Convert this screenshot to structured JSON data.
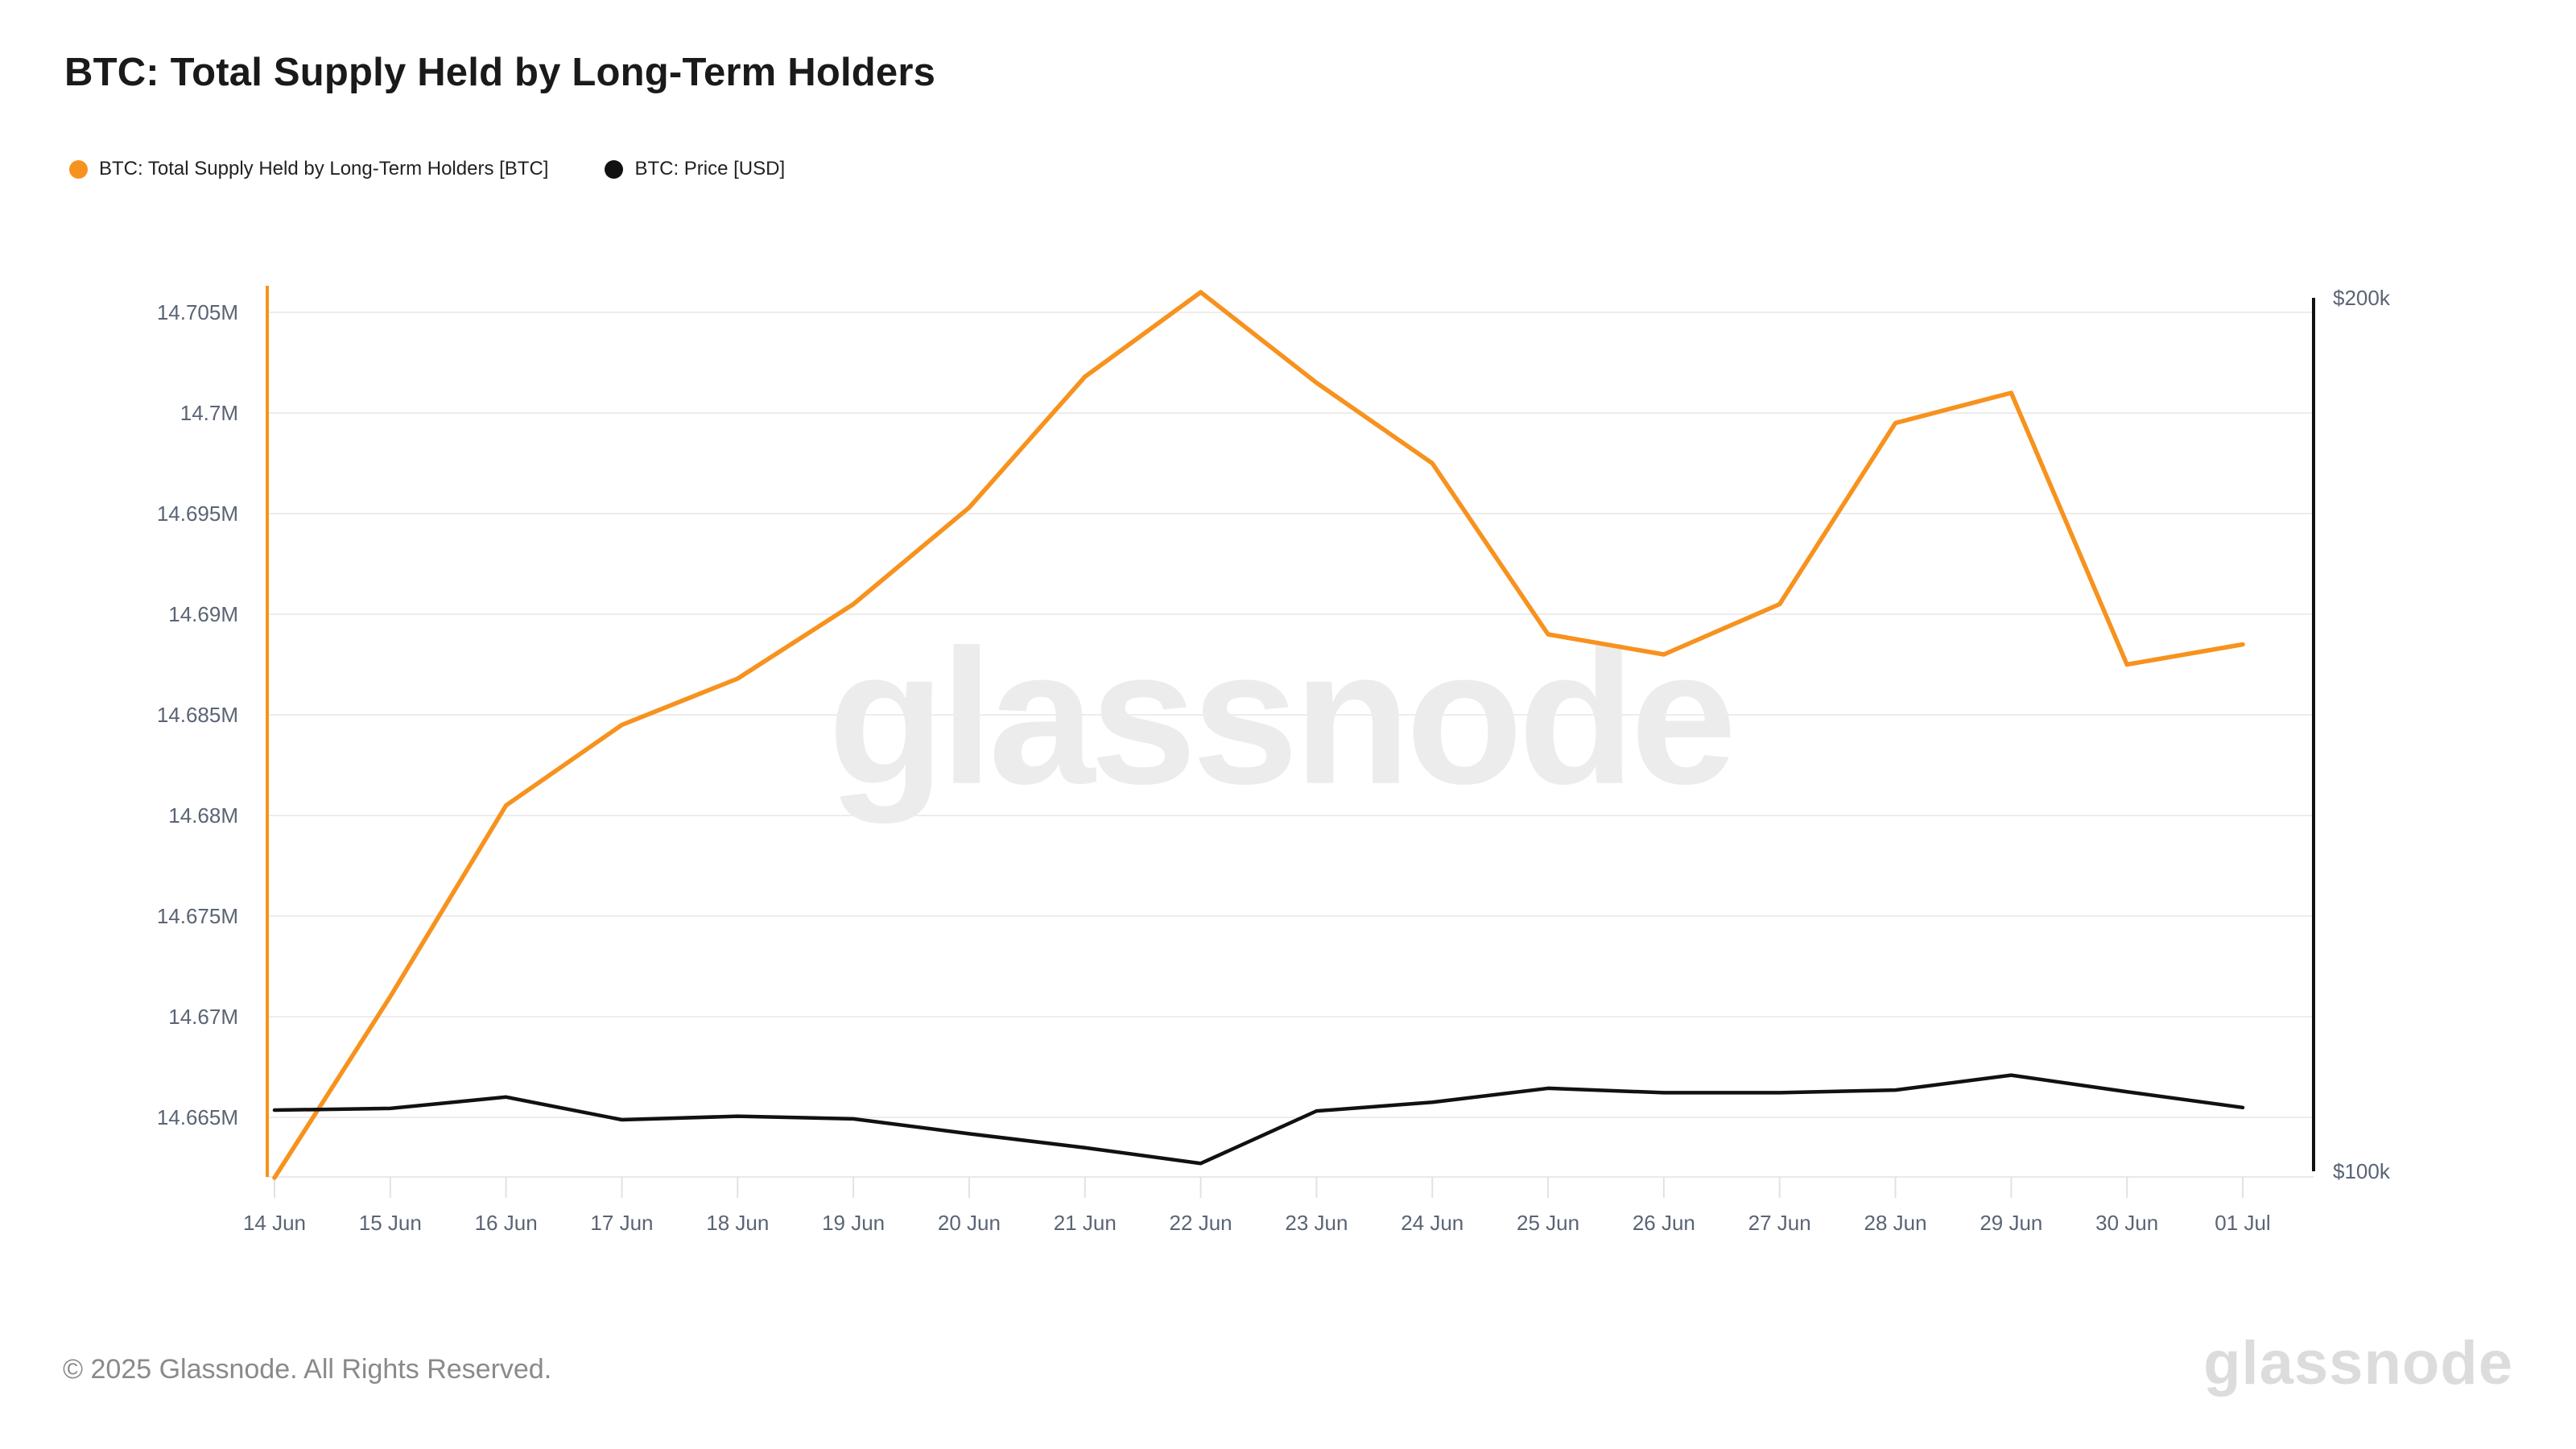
{
  "header": {
    "title": "BTC: Total Supply Held by Long-Term Holders"
  },
  "legend": {
    "items": [
      {
        "label": "BTC: Total Supply Held by Long-Term Holders [BTC]",
        "color": "#f7921e"
      },
      {
        "label": "BTC: Price [USD]",
        "color": "#111111"
      }
    ]
  },
  "watermark": {
    "text": "glassnode"
  },
  "footer": {
    "copyright": "© 2025 Glassnode. All Rights Reserved.",
    "brand": "glassnode"
  },
  "chart_data": {
    "type": "line",
    "title": "BTC: Total Supply Held by Long-Term Holders",
    "grid": "horizontal",
    "legend_position": "top-left",
    "x": [
      "14 Jun",
      "15 Jun",
      "16 Jun",
      "17 Jun",
      "18 Jun",
      "19 Jun",
      "20 Jun",
      "21 Jun",
      "22 Jun",
      "23 Jun",
      "24 Jun",
      "25 Jun",
      "26 Jun",
      "27 Jun",
      "28 Jun",
      "29 Jun",
      "30 Jun",
      "01 Jul"
    ],
    "series": [
      {
        "name": "BTC: Total Supply Held by Long-Term Holders [BTC]",
        "axis": "left",
        "unit": "M BTC",
        "color": "#f7921e",
        "values": [
          14.662,
          14.671,
          14.6805,
          14.6845,
          14.6868,
          14.6905,
          14.6953,
          14.7018,
          14.706,
          14.7015,
          14.6975,
          14.689,
          14.688,
          14.6905,
          14.6995,
          14.701,
          14.6875,
          14.6885
        ]
      },
      {
        "name": "BTC: Price [USD]",
        "axis": "right",
        "unit": "thousand USD",
        "color": "#111111",
        "values": [
          107.0,
          107.2,
          108.5,
          105.9,
          106.3,
          106.0,
          104.3,
          102.7,
          100.9,
          106.9,
          107.9,
          109.5,
          109.0,
          109.0,
          109.3,
          111.0,
          109.1,
          107.3
        ]
      }
    ],
    "left_axis": {
      "ticks": [
        {
          "label": "14.705M",
          "value": 14.705
        },
        {
          "label": "14.7M",
          "value": 14.7
        },
        {
          "label": "14.695M",
          "value": 14.695
        },
        {
          "label": "14.69M",
          "value": 14.69
        },
        {
          "label": "14.685M",
          "value": 14.685
        },
        {
          "label": "14.68M",
          "value": 14.68
        },
        {
          "label": "14.675M",
          "value": 14.675
        },
        {
          "label": "14.67M",
          "value": 14.67
        },
        {
          "label": "14.665M",
          "value": 14.665
        }
      ],
      "range": [
        14.662,
        14.707
      ]
    },
    "right_axis": {
      "ticks": [
        {
          "label": "$200k",
          "value": 200
        },
        {
          "label": "$100k",
          "value": 100
        }
      ],
      "range": [
        100,
        200
      ]
    }
  }
}
